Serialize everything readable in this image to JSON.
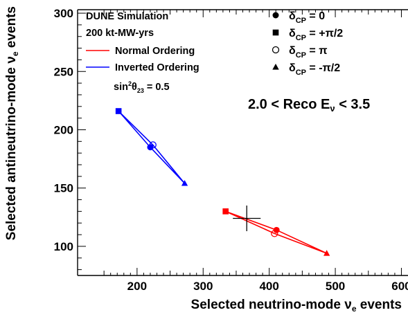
{
  "chart_data": {
    "type": "scatter",
    "title": "",
    "xlabel": "Selected neutrino-mode",
    "xlabel_symbol": "ν",
    "xlabel_sub": "e",
    "xlabel_tail": " events",
    "ylabel": "Selected antineutrino-mode",
    "ylabel_symbol": "ν",
    "ylabel_sub": "e",
    "ylabel_tail": " events",
    "xlim": [
      110,
      610
    ],
    "ylim": [
      75,
      303
    ],
    "xticks": [
      200,
      300,
      400,
      500,
      600
    ],
    "yticks": [
      100,
      150,
      200,
      250,
      300
    ],
    "grid": false,
    "legend_placement": "top-left",
    "header_lines": [
      "DUNE Simulation",
      "200 kt-MW-yrs"
    ],
    "energy_range": {
      "lo": "2.0 < Reco E",
      "sub": "ν",
      "hi": " < 3.5"
    },
    "theta_label": {
      "pre": "sin",
      "sup": "2",
      "mid": "θ",
      "sub": "23",
      "post": " = 0.5"
    },
    "series": [
      {
        "name": "Normal Ordering",
        "color": "#ff0000",
        "points": [
          {
            "marker": "square",
            "x": 334,
            "y": 130
          },
          {
            "marker": "filled-circle",
            "x": 411,
            "y": 114
          },
          {
            "marker": "triangle",
            "x": 487,
            "y": 94
          },
          {
            "marker": "open-circle",
            "x": 408,
            "y": 111
          }
        ]
      },
      {
        "name": "Inverted Ordering",
        "color": "#0000ff",
        "points": [
          {
            "marker": "square",
            "x": 172,
            "y": 216
          },
          {
            "marker": "filled-circle",
            "x": 220,
            "y": 185
          },
          {
            "marker": "triangle",
            "x": 272,
            "y": 154
          },
          {
            "marker": "open-circle",
            "x": 224,
            "y": 187
          }
        ]
      }
    ],
    "data_point": {
      "x": 366,
      "y": 124,
      "xerr": 21,
      "yerr": 11,
      "color": "#000000"
    },
    "marker_legend": [
      {
        "marker": "filled-circle",
        "label": "δ",
        "sub": "CP",
        "value": " = 0"
      },
      {
        "marker": "square",
        "label": "δ",
        "sub": "CP",
        "value": " = +π/2"
      },
      {
        "marker": "open-circle",
        "label": "δ",
        "sub": "CP",
        "value": " = π"
      },
      {
        "marker": "triangle",
        "label": "δ",
        "sub": "CP",
        "value": " = -π/2"
      }
    ]
  }
}
